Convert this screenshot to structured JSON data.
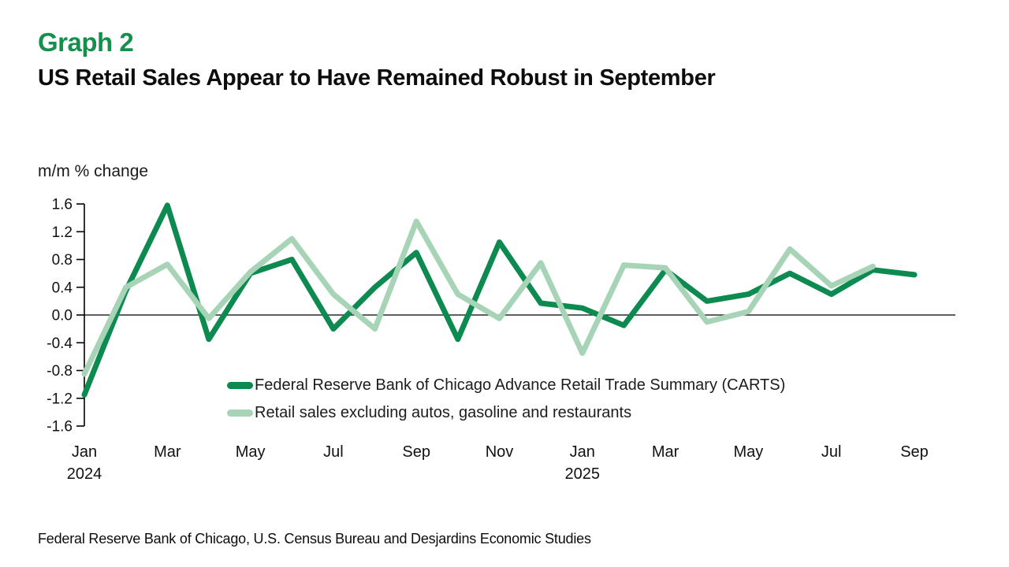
{
  "header": {
    "title": "Graph 2",
    "subtitle": "US Retail Sales Appear to Have Remained Robust in September"
  },
  "chart_data": {
    "type": "line",
    "title": "US Retail Sales Appear to Have Remained Robust in September",
    "ylabel": "m/m % change",
    "xlabel": "",
    "ylim": [
      -1.6,
      1.6
    ],
    "grid": false,
    "zero_line": true,
    "legend_position": "inside-bottom-left",
    "y_ticks": [
      "1.6",
      "1.2",
      "0.8",
      "0.4",
      "0.0",
      "-0.4",
      "-0.8",
      "-1.2",
      "-1.6"
    ],
    "x_months": [
      "Jan 2024",
      "Feb 2024",
      "Mar 2024",
      "Apr 2024",
      "May 2024",
      "Jun 2024",
      "Jul 2024",
      "Aug 2024",
      "Sep 2024",
      "Oct 2024",
      "Nov 2024",
      "Dec 2024",
      "Jan 2025",
      "Feb 2025",
      "Mar 2025",
      "Apr 2025",
      "May 2025",
      "Jun 2025",
      "Jul 2025",
      "Aug 2025",
      "Sep 2025"
    ],
    "x_ticks": [
      {
        "i": 0,
        "label": "Jan",
        "year": "2024"
      },
      {
        "i": 2,
        "label": "Mar"
      },
      {
        "i": 4,
        "label": "May"
      },
      {
        "i": 6,
        "label": "Jul"
      },
      {
        "i": 8,
        "label": "Sep"
      },
      {
        "i": 10,
        "label": "Nov"
      },
      {
        "i": 12,
        "label": "Jan",
        "year": "2025"
      },
      {
        "i": 14,
        "label": "Mar"
      },
      {
        "i": 16,
        "label": "May"
      },
      {
        "i": 18,
        "label": "Jul"
      },
      {
        "i": 20,
        "label": "Sep"
      }
    ],
    "series": [
      {
        "name": "Federal Reserve Bank of Chicago Advance Retail Trade Summary (CARTS)",
        "color": "#0d8a4f",
        "values": [
          -1.15,
          0.35,
          1.58,
          -0.35,
          0.6,
          0.8,
          -0.2,
          0.4,
          0.9,
          -0.35,
          1.05,
          0.17,
          0.1,
          -0.15,
          0.65,
          0.2,
          0.3,
          0.6,
          0.3,
          0.65,
          0.58
        ]
      },
      {
        "name": "Retail sales excluding autos, gasoline and restaurants",
        "color": "#a7d4b6",
        "values": [
          -0.85,
          0.4,
          0.73,
          -0.05,
          0.62,
          1.1,
          0.3,
          -0.2,
          1.35,
          0.3,
          -0.05,
          0.75,
          -0.55,
          0.72,
          0.68,
          -0.1,
          0.05,
          0.95,
          0.42,
          0.7,
          null
        ]
      }
    ]
  },
  "footer": {
    "source": "Federal Reserve Bank of Chicago, U.S. Census Bureau and Desjardins Economic Studies"
  }
}
